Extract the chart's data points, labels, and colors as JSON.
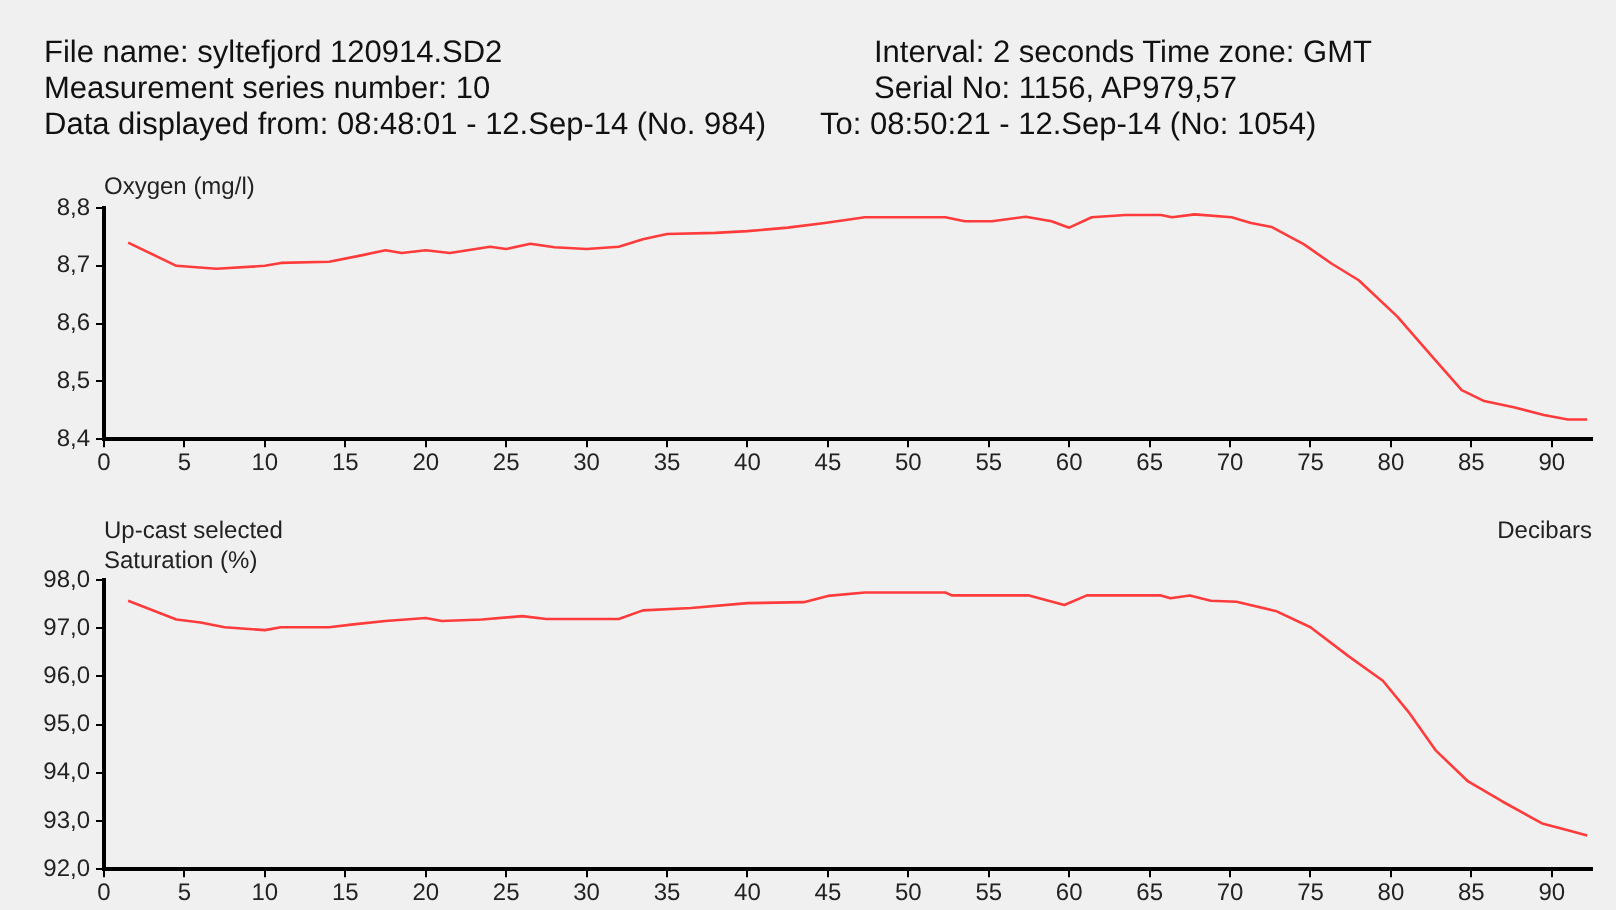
{
  "chart_data": [
    {
      "type": "line",
      "ylabel": "Oxygen (mg/l)",
      "annotations": [
        "File name: syltefjord 120914.SD2",
        "Measurement series number: 10",
        "Data displayed from: 08:48:01 - 12.Sep-14 (No. 984)",
        "Interval: 2 seconds    Time zone: GMT",
        "Serial No: 1156, AP979,57",
        "To: 08:50:21 - 12.Sep-14 (No: 1054)"
      ],
      "series": [
        {
          "color": "#ff3b3b",
          "x": [
            1.5,
            4.5,
            7,
            10,
            11,
            14,
            16,
            17.5,
            18.5,
            20,
            21.5,
            24,
            25,
            26.5,
            28,
            30,
            32,
            33.5,
            35,
            38,
            40,
            42.5,
            44.8,
            47.3,
            52.3,
            53.5,
            55.2,
            57.3,
            58.9,
            60,
            61.4,
            63.5,
            65.7,
            66.4,
            67.8,
            70.1,
            71.3,
            72.6,
            74.6,
            76.3,
            78,
            80.4,
            82.5,
            84.4,
            85.8,
            87.7,
            89.5,
            91,
            92.2
          ],
          "values": [
            8.74,
            8.7,
            8.695,
            8.7,
            8.705,
            8.707,
            8.718,
            8.727,
            8.722,
            8.727,
            8.722,
            8.733,
            8.729,
            8.738,
            8.732,
            8.729,
            8.733,
            8.746,
            8.755,
            8.757,
            8.76,
            8.766,
            8.774,
            8.784,
            8.784,
            8.777,
            8.777,
            8.785,
            8.777,
            8.766,
            8.784,
            8.788,
            8.788,
            8.784,
            8.789,
            8.784,
            8.774,
            8.767,
            8.737,
            8.704,
            8.675,
            8.612,
            8.545,
            8.485,
            8.466,
            8.455,
            8.442,
            8.434,
            8.434
          ]
        }
      ],
      "xlim": [
        0,
        92.5
      ],
      "xticks": [
        0,
        5,
        10,
        15,
        20,
        25,
        30,
        35,
        40,
        45,
        50,
        55,
        60,
        65,
        70,
        75,
        80,
        85,
        90
      ],
      "ylim": [
        8.4,
        8.8
      ],
      "yticks": [
        {
          "value": 8.4,
          "label": "8,4"
        },
        {
          "value": 8.5,
          "label": "8,5"
        },
        {
          "value": 8.6,
          "label": "8,6"
        },
        {
          "value": 8.7,
          "label": "8,7"
        },
        {
          "value": 8.8,
          "label": "8,8"
        }
      ],
      "grid": false,
      "legend": false,
      "marker": "none",
      "line_style": "solid"
    },
    {
      "type": "line",
      "ylabel": "Saturation (%)",
      "xlabel": "Decibars",
      "annotations": [
        "Up-cast selected"
      ],
      "series": [
        {
          "color": "#ff3b3b",
          "x": [
            1.5,
            4.5,
            6,
            7.5,
            10,
            11,
            14,
            15.5,
            17.5,
            20,
            21,
            23.5,
            26,
            27.5,
            32,
            33.5,
            36.5,
            40,
            43.5,
            45,
            47.3,
            52.3,
            52.7,
            57.5,
            59.7,
            61.1,
            65.7,
            66.3,
            67.5,
            68.8,
            70.4,
            72.9,
            75,
            77.4,
            79.5,
            81.1,
            82.8,
            84.8,
            86.9,
            89.4,
            91,
            92.2
          ],
          "values": [
            97.57,
            97.18,
            97.12,
            97.02,
            96.96,
            97.02,
            97.02,
            97.08,
            97.15,
            97.21,
            97.15,
            97.18,
            97.25,
            97.19,
            97.19,
            97.37,
            97.42,
            97.52,
            97.54,
            97.67,
            97.74,
            97.74,
            97.68,
            97.68,
            97.48,
            97.68,
            97.68,
            97.62,
            97.68,
            97.57,
            97.55,
            97.35,
            97.02,
            96.41,
            95.91,
            95.26,
            94.46,
            93.82,
            93.41,
            92.95,
            92.81,
            92.7
          ]
        }
      ],
      "xlim": [
        0,
        92.5
      ],
      "xticks": [
        0,
        5,
        10,
        15,
        20,
        25,
        30,
        35,
        40,
        45,
        50,
        55,
        60,
        65,
        70,
        75,
        80,
        85,
        90
      ],
      "ylim": [
        92,
        98
      ],
      "yticks": [
        {
          "value": 92,
          "label": "92,0"
        },
        {
          "value": 93,
          "label": "93,0"
        },
        {
          "value": 94,
          "label": "94,0"
        },
        {
          "value": 95,
          "label": "95,0"
        },
        {
          "value": 96,
          "label": "96,0"
        },
        {
          "value": 97,
          "label": "97,0"
        },
        {
          "value": 98,
          "label": "98,0"
        }
      ],
      "grid": false,
      "legend": false,
      "marker": "none",
      "line_style": "solid"
    }
  ]
}
